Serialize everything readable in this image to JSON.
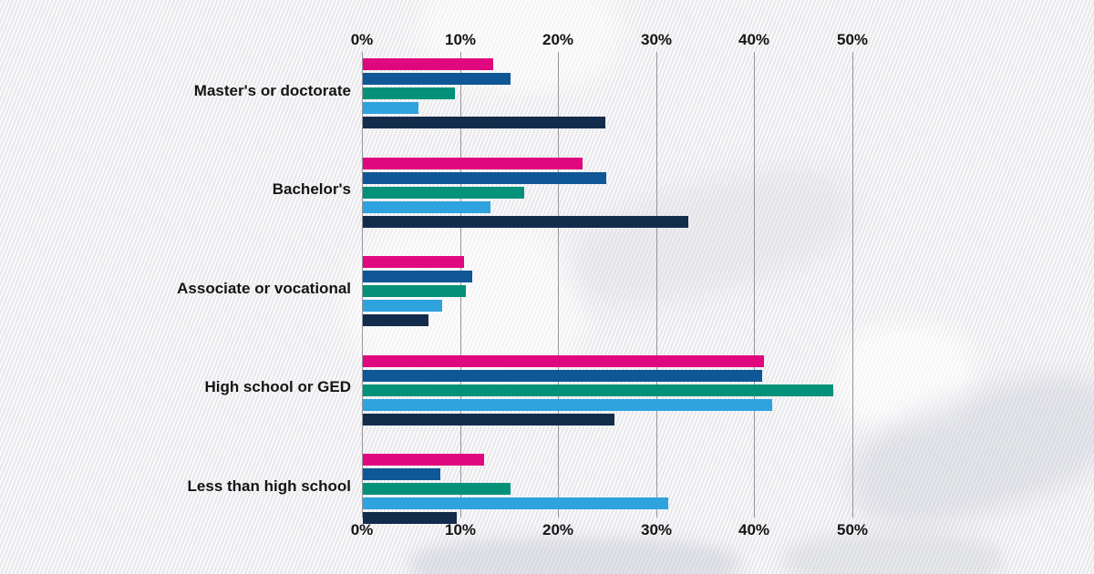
{
  "canvas": {
    "background_color": "#e9e9ed",
    "stripe_color": "#ffffff",
    "gridline_color": "#96969b",
    "text_color": "#141414"
  },
  "chart_data": {
    "type": "bar",
    "orientation": "horizontal",
    "title": "",
    "legend": "none",
    "grid": true,
    "categories": [
      "Master's or doctorate",
      "Bachelor's",
      "Associate or vocational",
      "High school or GED",
      "Less than high school"
    ],
    "series": [
      {
        "name": "series-magenta",
        "color": "#e0087e",
        "values": [
          13.3,
          22.4,
          10.3,
          40.9,
          12.4
        ]
      },
      {
        "name": "series-dark-blue",
        "color": "#0f5796",
        "values": [
          15.1,
          24.8,
          11.2,
          40.7,
          7.9
        ]
      },
      {
        "name": "series-green",
        "color": "#03917a",
        "values": [
          9.4,
          16.5,
          10.5,
          48.0,
          15.1
        ]
      },
      {
        "name": "series-cyan",
        "color": "#2ea3de",
        "values": [
          5.7,
          13.0,
          8.1,
          41.8,
          31.2
        ]
      },
      {
        "name": "series-navy",
        "color": "#142c4b",
        "values": [
          24.7,
          33.2,
          6.7,
          25.7,
          9.6
        ]
      }
    ],
    "x_axis": {
      "min": 0,
      "max": 50,
      "tick_labels": [
        "0%",
        "10%",
        "20%",
        "30%",
        "40%",
        "50%"
      ],
      "labels_on_top": true,
      "labels_on_bottom": true
    }
  }
}
